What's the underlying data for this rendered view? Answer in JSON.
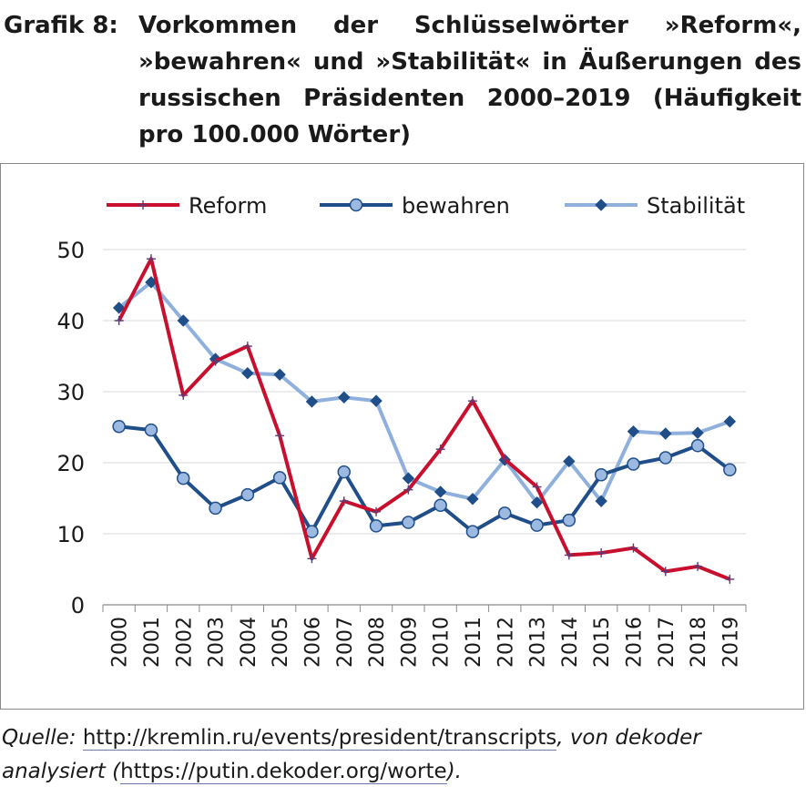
{
  "caption": {
    "label": "Grafik 8:",
    "text": "Vorkommen der Schlüsselwörter »Reform«, »bewahren« und »Stabilität« in Äußerungen des russischen Präsidenten 2000–2019 (Häufigkeit pro 100.000 Wörter)"
  },
  "source": {
    "prefix": "Quelle:",
    "link1": "http://kremlin.ru/events/president/transcripts",
    "middle": ", von dekoder analysiert (",
    "link2": "https://putin.dekoder.org/worte",
    "suffix": ")."
  },
  "chart_data": {
    "type": "line",
    "categories": [
      "2000",
      "2001",
      "2002",
      "2003",
      "2004",
      "2005",
      "2006",
      "2007",
      "2008",
      "2009",
      "2010",
      "2011",
      "2012",
      "2013",
      "2014",
      "2015",
      "2016",
      "2017",
      "2018",
      "2019"
    ],
    "ylim": [
      0,
      50
    ],
    "yticks": [
      0,
      10,
      20,
      30,
      40,
      50
    ],
    "grid": true,
    "legend_position": "top",
    "series": [
      {
        "name": "Reform",
        "color": "#c8102e",
        "marker": "plus",
        "values": [
          40,
          48.7,
          29.5,
          34.3,
          36.4,
          23.8,
          6.5,
          14.6,
          13.1,
          16.2,
          21.9,
          28.7,
          20.5,
          16.6,
          7.0,
          7.3,
          8.0,
          4.7,
          5.4,
          3.6
        ]
      },
      {
        "name": "bewahren",
        "color": "#1f4e89",
        "marker": "circle",
        "values": [
          25.1,
          24.6,
          17.8,
          13.6,
          15.5,
          17.9,
          10.3,
          18.7,
          11.1,
          11.6,
          14.0,
          10.3,
          12.9,
          11.2,
          11.9,
          18.3,
          19.8,
          20.7,
          22.4,
          19.0
        ]
      },
      {
        "name": "Stabilität",
        "color": "#8fb0dc",
        "marker": "diamond",
        "values": [
          41.8,
          45.4,
          40.0,
          34.6,
          32.6,
          32.4,
          28.6,
          29.2,
          28.7,
          17.8,
          15.9,
          14.9,
          20.4,
          14.4,
          20.2,
          14.6,
          24.4,
          24.1,
          24.2,
          25.8
        ]
      }
    ]
  }
}
